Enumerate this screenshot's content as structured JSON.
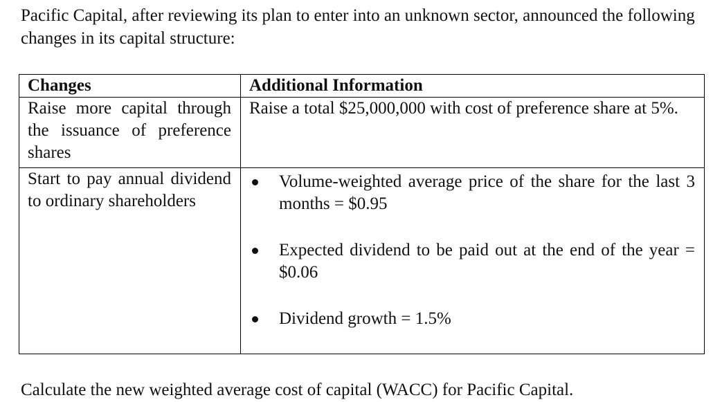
{
  "intro_text": "Pacific Capital, after reviewing its plan to enter into an unknown sector, announced the following changes in its capital structure:",
  "table": {
    "headers": {
      "changes": "Changes",
      "additional_information": "Additional Information"
    },
    "rows": [
      {
        "change": "Raise more capital through the issuance of preference shares",
        "information": "Raise a total $25,000,000 with cost of preference share at 5%."
      },
      {
        "change": "Start to pay annual dividend to ordinary shareholders",
        "bullets": [
          "Volume-weighted average price of the share for the last 3 months = $0.95",
          "Expected dividend to be paid out at the end of the year = $0.06",
          "Dividend growth = 1.5%"
        ]
      }
    ]
  },
  "question_text": "Calculate the new weighted average cost of capital (WACC) for Pacific Capital."
}
